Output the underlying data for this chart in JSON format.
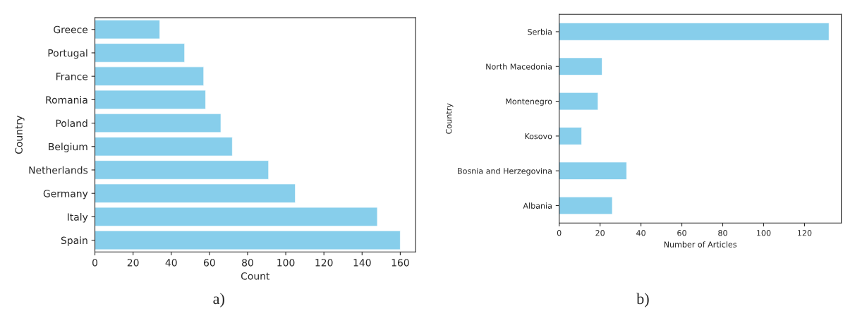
{
  "chart_data": [
    {
      "type": "bar",
      "orientation": "horizontal",
      "xlabel": "Count",
      "ylabel": "Country",
      "categories": [
        "Greece",
        "Portugal",
        "France",
        "Romania",
        "Poland",
        "Belgium",
        "Netherlands",
        "Germany",
        "Italy",
        "Spain"
      ],
      "values": [
        34,
        47,
        57,
        58,
        66,
        72,
        91,
        105,
        148,
        160
      ],
      "color": "#87ceeb",
      "xlim": [
        0,
        168
      ],
      "xticks": [
        0,
        20,
        40,
        60,
        80,
        100,
        120,
        140,
        160
      ],
      "grid": false,
      "annotations": [
        "a)"
      ]
    },
    {
      "type": "bar",
      "orientation": "horizontal",
      "xlabel": "Number of Articles",
      "ylabel": "Country",
      "categories": [
        "Serbia",
        "North Macedonia",
        "Montenegro",
        "Kosovo",
        "Bosnia and Herzegovina",
        "Albania"
      ],
      "values": [
        132,
        21,
        19,
        11,
        33,
        26
      ],
      "color": "#87ceeb",
      "xlim": [
        0,
        138
      ],
      "xticks": [
        0,
        20,
        40,
        60,
        80,
        100,
        120
      ],
      "grid": false,
      "annotations": [
        "b)"
      ]
    }
  ]
}
